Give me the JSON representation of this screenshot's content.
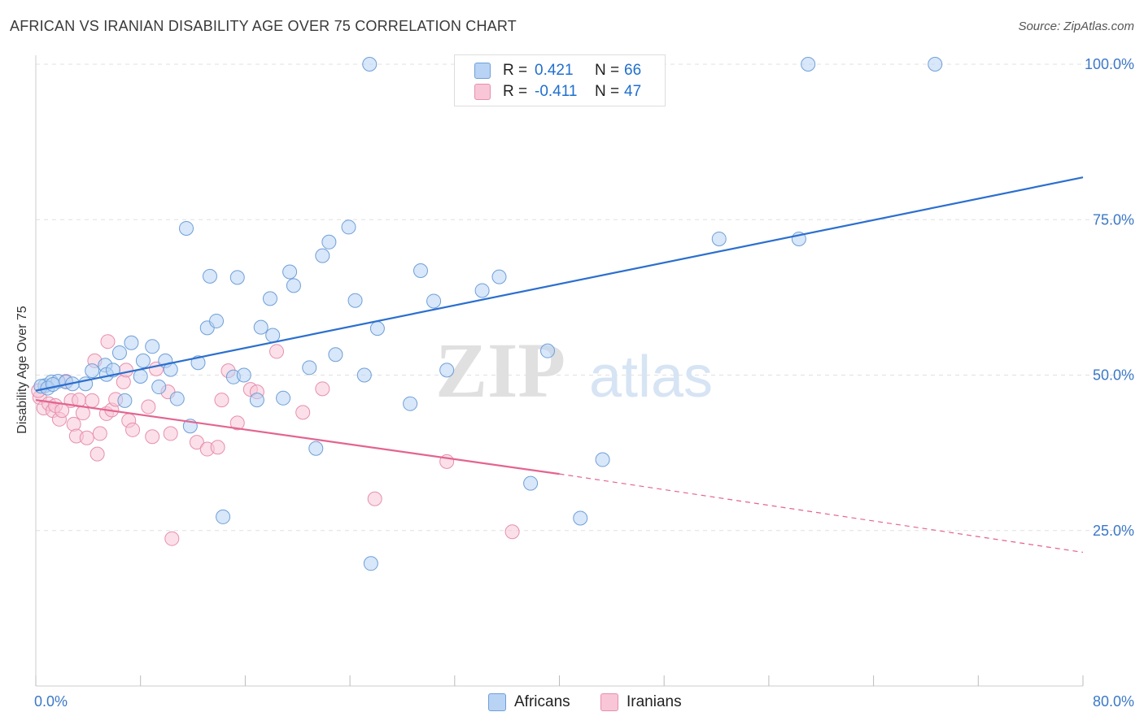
{
  "title": "AFRICAN VS IRANIAN DISABILITY AGE OVER 75 CORRELATION CHART",
  "source": "Source: ZipAtlas.com",
  "watermark": {
    "zip": "ZIP",
    "atlas": "atlas"
  },
  "legend": {
    "africans": {
      "r_label": "R =",
      "r_value": "0.421",
      "n_label": "N =",
      "n_value": "66"
    },
    "iranians": {
      "r_label": "R =",
      "r_value": "-0.411",
      "n_label": "N =",
      "n_value": "47"
    }
  },
  "colors": {
    "africans_fill": "#b8d3f4",
    "africans_stroke": "#6f9fd8",
    "africans_line": "#2b6fcf",
    "iranians_fill": "#f8c6d7",
    "iranians_stroke": "#e78fae",
    "iranians_line": "#e4648f",
    "tick_label": "#3b78c8",
    "grid": "#e0e0e0"
  },
  "chart_data": {
    "type": "scatter",
    "title": "AFRICAN VS IRANIAN DISABILITY AGE OVER 75 CORRELATION CHART",
    "xlabel": "",
    "ylabel": "Disability Age Over 75",
    "xlim": [
      0,
      80
    ],
    "ylim": [
      0,
      100
    ],
    "x_tick_labels": [
      "0.0%",
      "80.0%"
    ],
    "y_ticks": [
      25,
      50,
      75,
      100
    ],
    "y_tick_labels": [
      "25.0%",
      "50.0%",
      "75.0%",
      "100.0%"
    ],
    "legend_position": "bottom",
    "grid": true,
    "series": [
      {
        "name": "Africans",
        "r": 0.421,
        "n": 66,
        "trend": {
          "x": [
            0,
            80
          ],
          "y": [
            47.5,
            81.8
          ]
        },
        "points": [
          [
            0.7,
            48.3
          ],
          [
            1.2,
            48.9
          ],
          [
            1.7,
            49.0
          ],
          [
            2.3,
            48.9
          ],
          [
            2.8,
            48.6
          ],
          [
            3.8,
            48.6
          ],
          [
            4.3,
            50.7
          ],
          [
            5.3,
            51.6
          ],
          [
            5.4,
            50.1
          ],
          [
            5.9,
            50.8
          ],
          [
            6.4,
            53.6
          ],
          [
            6.8,
            45.9
          ],
          [
            7.3,
            55.2
          ],
          [
            8.0,
            49.8
          ],
          [
            8.2,
            52.3
          ],
          [
            8.9,
            54.6
          ],
          [
            9.4,
            48.1
          ],
          [
            9.9,
            52.3
          ],
          [
            10.3,
            50.9
          ],
          [
            10.8,
            46.2
          ],
          [
            11.5,
            73.6
          ],
          [
            11.8,
            41.8
          ],
          [
            12.4,
            52.0
          ],
          [
            13.1,
            57.6
          ],
          [
            13.3,
            65.9
          ],
          [
            13.8,
            58.7
          ],
          [
            14.3,
            27.2
          ],
          [
            15.1,
            49.7
          ],
          [
            15.4,
            65.7
          ],
          [
            15.9,
            50.0
          ],
          [
            16.9,
            46.0
          ],
          [
            17.2,
            57.7
          ],
          [
            17.9,
            62.3
          ],
          [
            18.1,
            56.4
          ],
          [
            18.9,
            46.3
          ],
          [
            19.4,
            66.6
          ],
          [
            19.7,
            64.4
          ],
          [
            20.9,
            51.2
          ],
          [
            21.4,
            38.2
          ],
          [
            21.9,
            69.2
          ],
          [
            22.4,
            71.4
          ],
          [
            22.9,
            53.3
          ],
          [
            23.9,
            73.8
          ],
          [
            24.4,
            62.0
          ],
          [
            25.1,
            50.0
          ],
          [
            25.6,
            19.7
          ],
          [
            26.1,
            57.5
          ],
          [
            28.6,
            45.4
          ],
          [
            29.4,
            66.8
          ],
          [
            30.4,
            61.9
          ],
          [
            31.4,
            50.8
          ],
          [
            34.1,
            63.6
          ],
          [
            35.4,
            65.8
          ],
          [
            37.8,
            32.6
          ],
          [
            39.1,
            53.9
          ],
          [
            41.6,
            27.0
          ],
          [
            43.3,
            36.4
          ],
          [
            52.2,
            71.9
          ],
          [
            58.3,
            71.9
          ],
          [
            25.5,
            100.0
          ],
          [
            33.0,
            100.0
          ],
          [
            59.0,
            100.0
          ],
          [
            68.7,
            100.0
          ],
          [
            0.4,
            48.2
          ],
          [
            0.9,
            47.9
          ],
          [
            1.3,
            48.5
          ]
        ]
      },
      {
        "name": "Iranians",
        "r": -0.411,
        "n": 47,
        "trend": {
          "x": [
            0,
            40
          ],
          "y": [
            46.0,
            34.1
          ]
        },
        "trend_dashed": {
          "x": [
            40,
            80
          ],
          "y": [
            34.1,
            21.5
          ]
        },
        "points": [
          [
            0.3,
            46.4
          ],
          [
            0.6,
            44.7
          ],
          [
            1.0,
            45.4
          ],
          [
            1.3,
            44.3
          ],
          [
            1.8,
            42.9
          ],
          [
            2.3,
            49.0
          ],
          [
            2.7,
            45.9
          ],
          [
            2.9,
            42.1
          ],
          [
            3.1,
            40.2
          ],
          [
            3.3,
            46.0
          ],
          [
            3.6,
            43.9
          ],
          [
            3.9,
            39.9
          ],
          [
            4.3,
            45.9
          ],
          [
            4.5,
            52.3
          ],
          [
            4.7,
            37.3
          ],
          [
            4.9,
            40.6
          ],
          [
            5.4,
            43.8
          ],
          [
            5.5,
            55.4
          ],
          [
            5.8,
            44.4
          ],
          [
            6.1,
            46.1
          ],
          [
            6.7,
            48.9
          ],
          [
            6.9,
            50.8
          ],
          [
            7.1,
            42.7
          ],
          [
            7.4,
            41.2
          ],
          [
            8.6,
            44.9
          ],
          [
            8.9,
            40.1
          ],
          [
            9.2,
            51.0
          ],
          [
            10.1,
            47.3
          ],
          [
            10.3,
            40.6
          ],
          [
            10.4,
            23.7
          ],
          [
            12.3,
            39.2
          ],
          [
            13.1,
            38.1
          ],
          [
            13.9,
            38.4
          ],
          [
            14.2,
            46.0
          ],
          [
            14.7,
            50.7
          ],
          [
            15.4,
            42.3
          ],
          [
            16.4,
            47.7
          ],
          [
            16.9,
            47.3
          ],
          [
            18.4,
            53.8
          ],
          [
            20.4,
            44.0
          ],
          [
            21.9,
            47.8
          ],
          [
            25.9,
            30.1
          ],
          [
            31.4,
            36.1
          ],
          [
            36.4,
            24.8
          ],
          [
            0.2,
            47.5
          ],
          [
            1.5,
            45.1
          ],
          [
            2.0,
            44.3
          ]
        ]
      }
    ]
  },
  "legend_bottom": {
    "africans": "Africans",
    "iranians": "Iranians"
  }
}
